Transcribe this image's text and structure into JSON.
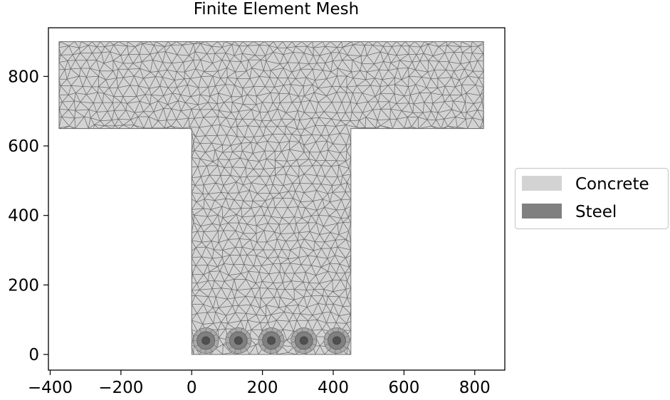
{
  "chart_data": {
    "type": "mesh",
    "title": "Finite Element Mesh",
    "xlabel": "",
    "ylabel": "",
    "xlim": [
      -405,
      885
    ],
    "ylim": [
      -45,
      940
    ],
    "xticks": [
      -400,
      -200,
      0,
      200,
      400,
      600,
      800
    ],
    "yticks": [
      0,
      200,
      400,
      600,
      800
    ],
    "xtick_labels": [
      "−400",
      "−200",
      "0",
      "200",
      "400",
      "600",
      "800"
    ],
    "ytick_labels": [
      "0",
      "200",
      "400",
      "600",
      "800"
    ],
    "grid": false,
    "legend_position": "right",
    "colors": {
      "concrete_fill": "#d3d3d3",
      "steel_fill": "#808080",
      "mesh_edge": "#6b6b6b",
      "steel_core": "#505050"
    },
    "regions": [
      {
        "name": "Concrete",
        "material": "concrete",
        "polygon": [
          [
            0,
            0
          ],
          [
            450,
            0
          ],
          [
            450,
            650
          ],
          [
            825,
            650
          ],
          [
            825,
            900
          ],
          [
            -375,
            900
          ],
          [
            -375,
            650
          ],
          [
            0,
            650
          ]
        ]
      }
    ],
    "steel_bars": [
      {
        "x": 40,
        "y": 40,
        "diameter": 50
      },
      {
        "x": 132,
        "y": 40,
        "diameter": 50
      },
      {
        "x": 225,
        "y": 40,
        "diameter": 50
      },
      {
        "x": 317,
        "y": 40,
        "diameter": 50
      },
      {
        "x": 410,
        "y": 40,
        "diameter": 50
      }
    ],
    "series": [
      {
        "name": "Concrete",
        "color": "#d3d3d3"
      },
      {
        "name": "Steel",
        "color": "#808080"
      }
    ]
  }
}
